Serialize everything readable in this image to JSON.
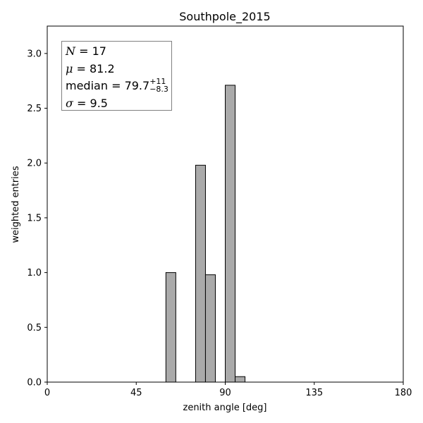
{
  "chart_data": {
    "type": "bar",
    "title": "Southpole_2015",
    "xlabel": "zenith angle [deg]",
    "ylabel": "weighted entries",
    "xlim": [
      0,
      180
    ],
    "ylim": [
      0,
      3.25
    ],
    "x_ticks": [
      "0",
      "45",
      "90",
      "135",
      "180"
    ],
    "y_ticks": [
      "0.0",
      "0.5",
      "1.0",
      "1.5",
      "2.0",
      "2.5",
      "3.0"
    ],
    "bin_width": 5,
    "bins": [
      {
        "x0": 60,
        "value": 1.0
      },
      {
        "x0": 75,
        "value": 1.98
      },
      {
        "x0": 80,
        "value": 0.98
      },
      {
        "x0": 90,
        "value": 2.71
      },
      {
        "x0": 95,
        "value": 0.05
      }
    ],
    "bar_color": "#aaaaaa",
    "edge_color": "#000000",
    "stats": {
      "n_label": "N",
      "n_value": "= 17",
      "mu_label": "μ",
      "mu_value": "= 81.2",
      "median_label": "median",
      "median_value": "= 79.7",
      "median_upper": "+11",
      "median_lower": "−8.3",
      "sigma_label": "σ",
      "sigma_value": "= 9.5"
    }
  }
}
